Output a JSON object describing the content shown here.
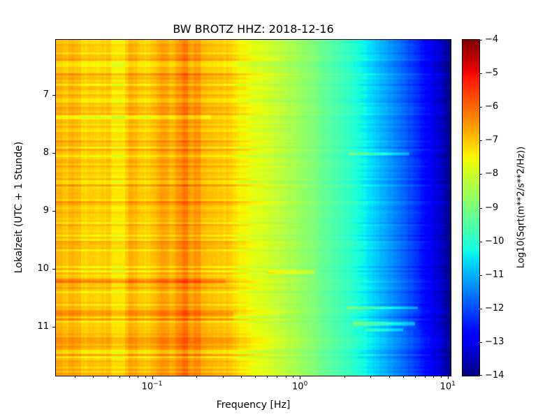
{
  "chart_data": {
    "type": "heatmap",
    "title": "BW BROTZ HHZ: 2018-12-16",
    "xlabel": "Frequency [Hz]",
    "ylabel": "Lokalzeit (UTC + 1 Stunde)",
    "x_scale": "log",
    "x_log_range": [
      -1.65,
      1.02
    ],
    "x_tick_base": "10",
    "x_tick_exponents": [
      -1,
      0,
      1
    ],
    "y_range_hours": [
      6.05,
      11.85
    ],
    "y_ticks": [
      7,
      8,
      9,
      10,
      11
    ],
    "grid": false,
    "colorbar": {
      "label": "Log10(Sqrt(m**2/s**2/Hz))",
      "min": -14,
      "max": -4,
      "ticks": [
        -4,
        -5,
        -6,
        -7,
        -8,
        -9,
        -10,
        -11,
        -12,
        -13,
        -14
      ],
      "colormap": "jet",
      "position": "right"
    },
    "spectral_profile": [
      {
        "lf": -1.66,
        "v": -6.85
      },
      {
        "lf": -1.45,
        "v": -7.05
      },
      {
        "lf": -1.28,
        "v": -7.3
      },
      {
        "lf": -1.13,
        "v": -6.95
      },
      {
        "lf": -1.0,
        "v": -7.1
      },
      {
        "lf": -0.9,
        "v": -6.6
      },
      {
        "lf": -0.78,
        "v": -6.35
      },
      {
        "lf": -0.63,
        "v": -6.7
      },
      {
        "lf": -0.5,
        "v": -7.05
      },
      {
        "lf": -0.35,
        "v": -7.6
      },
      {
        "lf": -0.18,
        "v": -8.05
      },
      {
        "lf": 0.0,
        "v": -8.6
      },
      {
        "lf": 0.2,
        "v": -9.4
      },
      {
        "lf": 0.4,
        "v": -10.2
      },
      {
        "lf": 0.6,
        "v": -11.2
      },
      {
        "lf": 0.78,
        "v": -12.2
      },
      {
        "lf": 0.93,
        "v": -13.2
      },
      {
        "lf": 1.02,
        "v": -13.9
      }
    ],
    "events": [
      {
        "time": 8.02,
        "hw": 0.035,
        "f0": 0.33,
        "f1": 0.74,
        "delta": 1.0
      },
      {
        "time": 10.06,
        "hw": 0.045,
        "f0": -0.22,
        "f1": 0.1,
        "delta": 0.85
      },
      {
        "time": 10.22,
        "hw": 0.06,
        "f0": -1.66,
        "f1": -0.5,
        "delta": 0.5
      },
      {
        "time": 10.68,
        "hw": 0.03,
        "f0": 0.32,
        "f1": 0.8,
        "delta": 1.1
      },
      {
        "time": 10.82,
        "hw": 0.09,
        "f0": -1.66,
        "f1": -0.45,
        "delta": 0.45
      },
      {
        "time": 10.95,
        "hw": 0.05,
        "f0": 0.36,
        "f1": 0.78,
        "delta": 1.2
      },
      {
        "time": 11.06,
        "hw": 0.035,
        "f0": 0.44,
        "f1": 0.7,
        "delta": 0.9
      },
      {
        "time": 7.38,
        "hw": 0.05,
        "f0": -1.66,
        "f1": -0.6,
        "delta": -0.45
      }
    ],
    "noise": {
      "seed": 42,
      "row_amp": 0.3,
      "stripe_amp": 0.22,
      "jitter": 0.09
    }
  }
}
